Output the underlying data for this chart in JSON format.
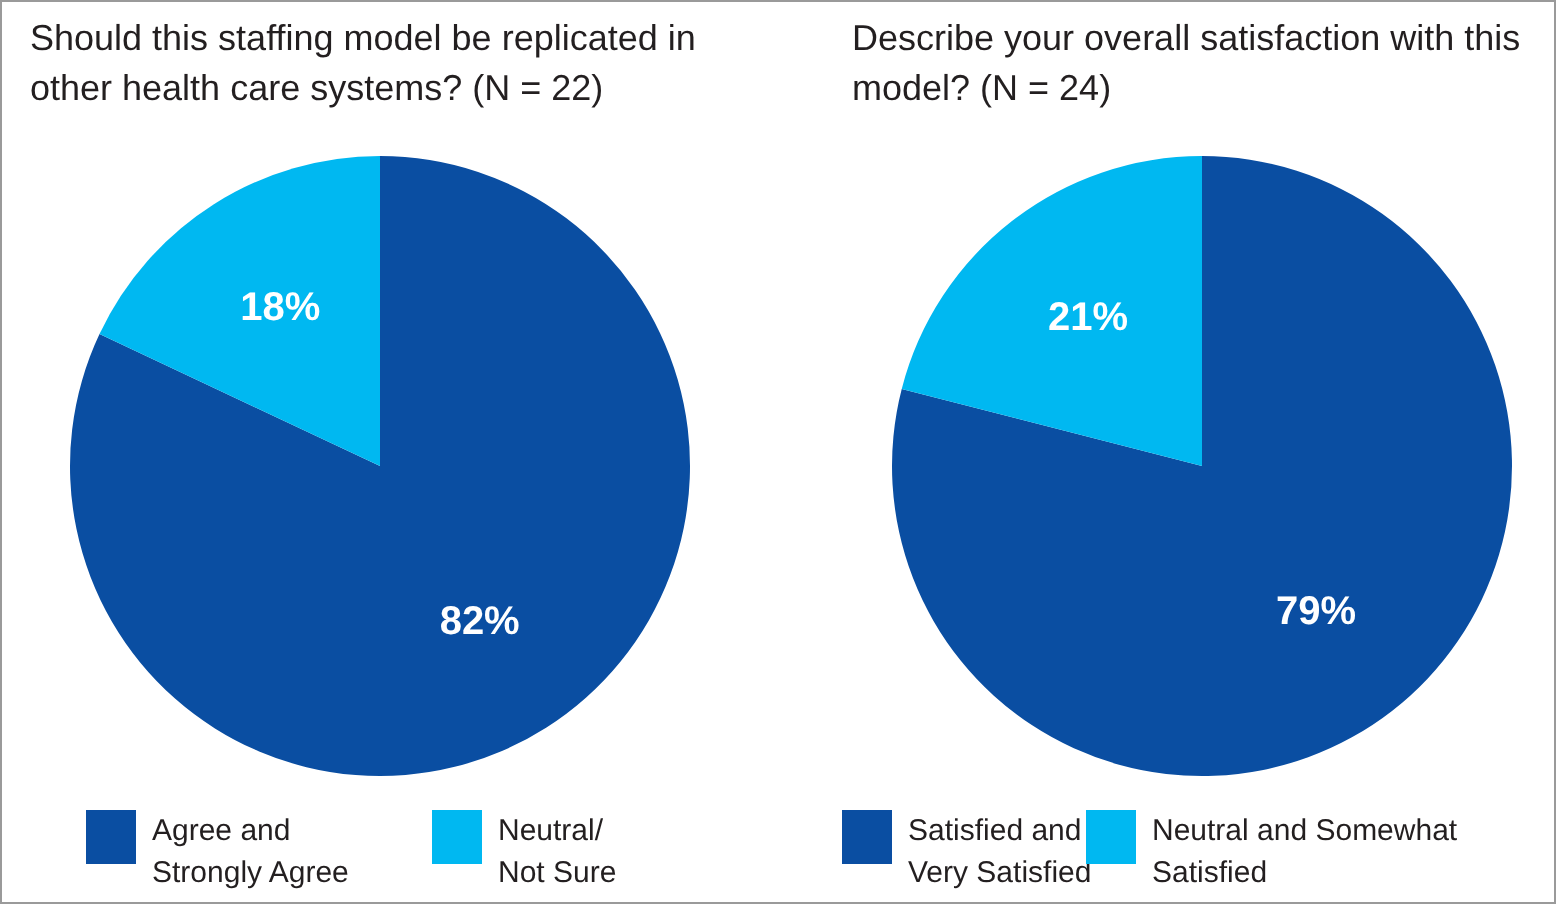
{
  "chart_data": [
    {
      "type": "pie",
      "title": "Should this staffing model be replicated in other health care systems? (N = 22)",
      "categories": [
        "Agree and Strongly Agree",
        "Neutral/ Not Sure"
      ],
      "values": [
        82,
        18
      ],
      "colors": [
        "#0a4ea2",
        "#00b8f1"
      ],
      "value_labels": [
        "82%",
        "18%"
      ],
      "legend": "bottom"
    },
    {
      "type": "pie",
      "title": "Describe your overall satisfaction with this model? (N = 24)",
      "categories": [
        "Satisfied and Very Satisfied",
        "Neutral and Somewhat Satisfied"
      ],
      "values": [
        79,
        21
      ],
      "colors": [
        "#0a4ea2",
        "#00b8f1"
      ],
      "value_labels": [
        "79%",
        "21%"
      ],
      "legend": "bottom"
    }
  ]
}
